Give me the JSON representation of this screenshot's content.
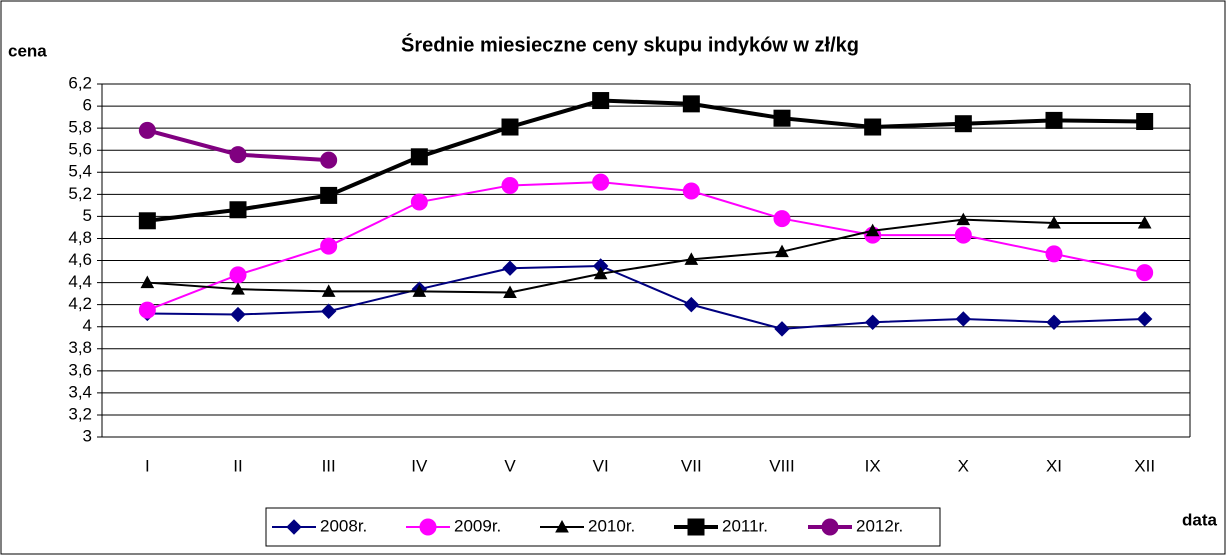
{
  "chart_data": {
    "type": "line",
    "title": "Średnie miesieczne ceny skupu indyków w zł/kg",
    "y_label": "cena",
    "x_label": "data",
    "categories": [
      "I",
      "II",
      "III",
      "IV",
      "V",
      "VI",
      "VII",
      "VIII",
      "IX",
      "X",
      "XI",
      "XII"
    ],
    "series": [
      {
        "name": "2008r.",
        "color": "#000080",
        "marker": "diamond",
        "line_width": 2,
        "values": [
          4.12,
          4.11,
          4.14,
          4.34,
          4.53,
          4.55,
          4.2,
          3.98,
          4.04,
          4.07,
          4.04,
          4.07
        ]
      },
      {
        "name": "2009r.",
        "color": "#ff00ff",
        "marker": "circle",
        "line_width": 2,
        "values": [
          4.15,
          4.47,
          4.73,
          5.13,
          5.28,
          5.31,
          5.23,
          4.98,
          4.83,
          4.83,
          4.66,
          4.49
        ]
      },
      {
        "name": "2010r.",
        "color": "#000000",
        "marker": "triangle",
        "line_width": 2,
        "values": [
          4.4,
          4.34,
          4.32,
          4.32,
          4.31,
          4.48,
          4.61,
          4.68,
          4.87,
          4.97,
          4.94,
          4.94
        ]
      },
      {
        "name": "2011r.",
        "color": "#000000",
        "marker": "square",
        "line_width": 4,
        "values": [
          4.96,
          5.06,
          5.19,
          5.54,
          5.81,
          6.05,
          6.02,
          5.89,
          5.81,
          5.84,
          5.87,
          5.86
        ]
      },
      {
        "name": "2012r.",
        "color": "#800080",
        "marker": "circle",
        "line_width": 4,
        "values": [
          5.78,
          5.56,
          5.51,
          null,
          null,
          null,
          null,
          null,
          null,
          null,
          null,
          null
        ]
      }
    ],
    "ylim": [
      3,
      6.2
    ],
    "yticks": [
      3,
      {
        "value": 3.2,
        "label": "3,2"
      },
      {
        "value": 3.4,
        "label": "3,4"
      },
      {
        "value": 3.6,
        "label": "3,6"
      },
      {
        "value": 3.8,
        "label": "3,8"
      },
      4,
      {
        "value": 4.2,
        "label": "4,2"
      },
      {
        "value": 4.4,
        "label": "4,4"
      },
      {
        "value": 4.6,
        "label": "4,6"
      },
      {
        "value": 4.8,
        "label": "4,8"
      },
      5,
      {
        "value": 5.2,
        "label": "5,2"
      },
      {
        "value": 5.4,
        "label": "5,4"
      },
      {
        "value": 5.6,
        "label": "5,6"
      },
      {
        "value": 5.8,
        "label": "5,8"
      },
      6,
      {
        "value": 6.2,
        "label": "6,2"
      }
    ],
    "grid": true,
    "legend": "bottom"
  }
}
